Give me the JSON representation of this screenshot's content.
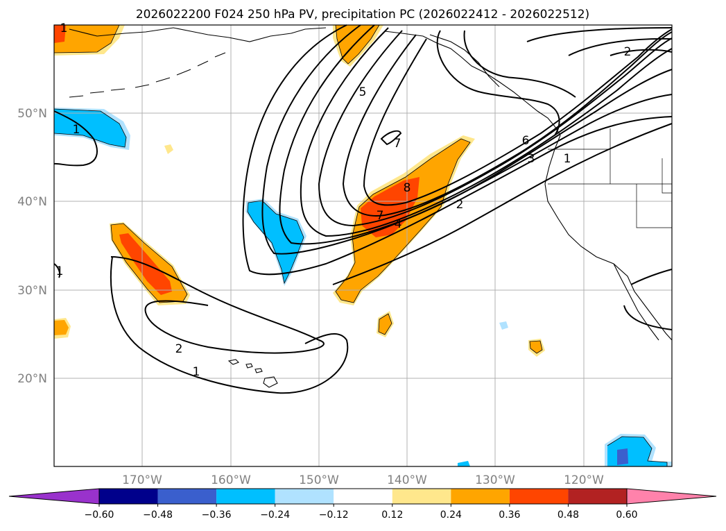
{
  "title": "2026022200 F024 250 hPa PV, precipitation PC (2026022412 - 2026022512)",
  "chart_data": {
    "type": "contour-map",
    "title": "2026022200 F024 250 hPa PV, precipitation PC (2026022412 - 2026022512)",
    "lon_range": [
      -180,
      -110
    ],
    "lat_range": [
      10,
      60
    ],
    "lat_ticks": [
      "20°N",
      "30°N",
      "40°N",
      "50°N"
    ],
    "lon_ticks": [
      "170°W",
      "160°W",
      "150°W",
      "140°W",
      "130°W",
      "120°W"
    ],
    "grid": true,
    "pv_contour_labels": [
      "1",
      "1",
      "1",
      "1",
      "1",
      "2",
      "2",
      "2",
      "3",
      "4",
      "5",
      "6",
      "7",
      "7",
      "8"
    ],
    "colorbar": {
      "extend": "both",
      "ticks": [
        "−0.60",
        "−0.48",
        "−0.36",
        "−0.24",
        "−0.12",
        "0.12",
        "0.24",
        "0.36",
        "0.48",
        "0.60"
      ],
      "colors": [
        "#9932cc",
        "#00008b",
        "#3a5fcd",
        "#00bfff",
        "#b0e2ff",
        "#ffffff",
        "#ffe78c",
        "#ffa500",
        "#ff4500",
        "#b22222",
        "#ff82ab"
      ]
    }
  }
}
